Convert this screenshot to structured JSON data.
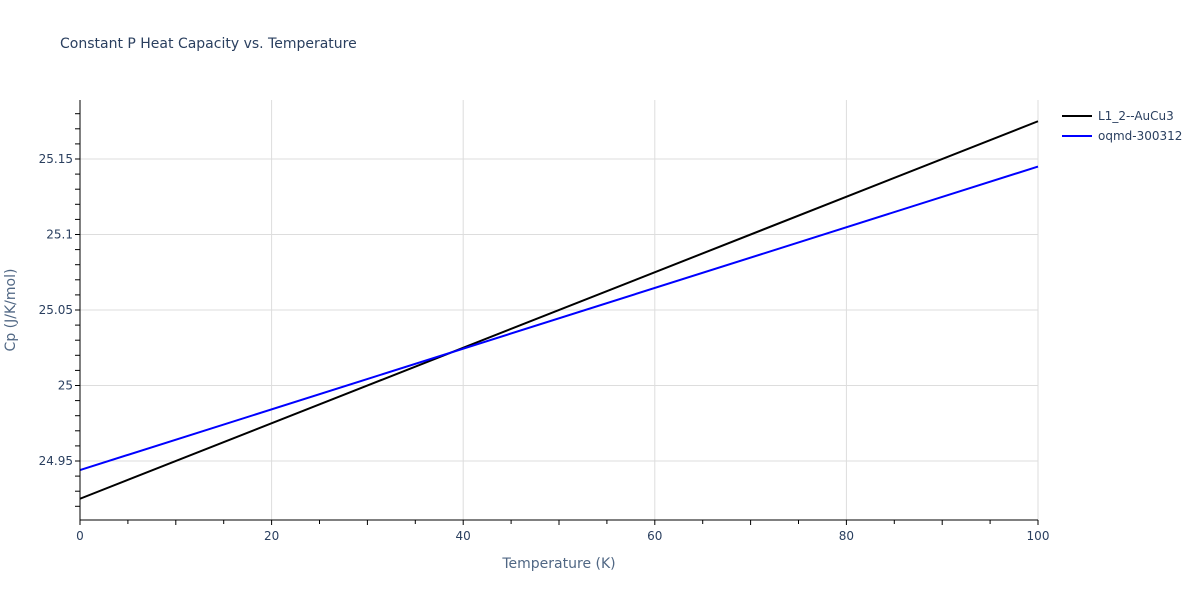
{
  "chart_data": {
    "type": "line",
    "title": "Constant P Heat Capacity vs. Temperature",
    "xlabel": "Temperature (K)",
    "ylabel": "Cp (J/K/mol)",
    "xlim": [
      0,
      100
    ],
    "ylim": [
      24.9125,
      25.1895
    ],
    "x_ticks": [
      "0",
      "20",
      "40",
      "60",
      "80",
      "100"
    ],
    "y_ticks": [
      "24.95",
      "25",
      "25.05",
      "25.1",
      "25.15"
    ],
    "grid": true,
    "legend_position": "right-top",
    "series": [
      {
        "name": "L1_2--AuCu3",
        "color": "#000000",
        "x": [
          0,
          100
        ],
        "values": [
          24.925,
          25.175
        ]
      },
      {
        "name": "oqmd-300312",
        "color": "#0000ff",
        "x": [
          0,
          100
        ],
        "values": [
          24.944,
          25.145
        ]
      }
    ]
  },
  "legend": {
    "items": [
      {
        "label": "L1_2--AuCu3",
        "color": "#000000"
      },
      {
        "label": "oqmd-300312",
        "color": "#0000ff"
      }
    ]
  }
}
